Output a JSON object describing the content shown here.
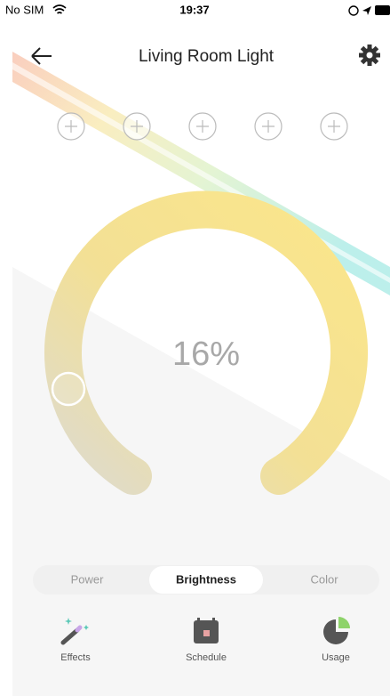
{
  "status_bar": {
    "carrier": "No SIM",
    "time": "19:37"
  },
  "header": {
    "title": "Living Room Light"
  },
  "brightness": {
    "label": "16%"
  },
  "tabs": [
    "Power",
    "Brightness",
    "Color"
  ],
  "bottom_nav": [
    "Effects",
    "Schedule",
    "Usage"
  ]
}
